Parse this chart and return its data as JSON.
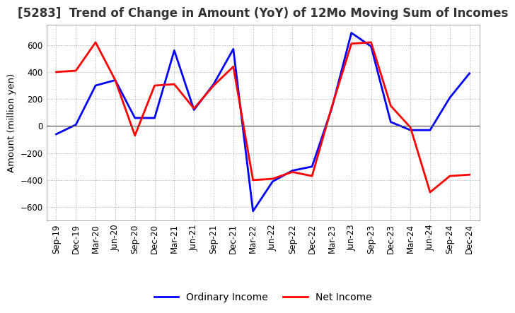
{
  "title": "[5283]  Trend of Change in Amount (YoY) of 12Mo Moving Sum of Incomes",
  "ylabel": "Amount (million yen)",
  "background_color": "#ffffff",
  "grid_color": "#aaaaaa",
  "x_labels": [
    "Sep-19",
    "Dec-19",
    "Mar-20",
    "Jun-20",
    "Sep-20",
    "Dec-20",
    "Mar-21",
    "Jun-21",
    "Sep-21",
    "Dec-21",
    "Mar-22",
    "Jun-22",
    "Sep-22",
    "Dec-22",
    "Mar-23",
    "Jun-23",
    "Sep-23",
    "Dec-23",
    "Mar-24",
    "Jun-24",
    "Sep-24",
    "Dec-24"
  ],
  "ordinary_income": [
    -60,
    10,
    300,
    340,
    60,
    60,
    560,
    120,
    310,
    570,
    -630,
    -410,
    -330,
    -300,
    130,
    690,
    590,
    30,
    -30,
    -30,
    210,
    390
  ],
  "net_income": [
    400,
    410,
    620,
    340,
    -70,
    300,
    310,
    130,
    300,
    440,
    -400,
    -390,
    -340,
    -370,
    140,
    610,
    620,
    150,
    -10,
    -490,
    -370,
    -360
  ],
  "ordinary_color": "#0000ff",
  "net_color": "#ff0000",
  "ylim": [
    -700,
    750
  ],
  "yticks": [
    -600,
    -400,
    -200,
    0,
    200,
    400,
    600
  ],
  "line_width": 2.0,
  "title_fontsize": 12,
  "legend_fontsize": 10,
  "tick_fontsize": 8.5
}
